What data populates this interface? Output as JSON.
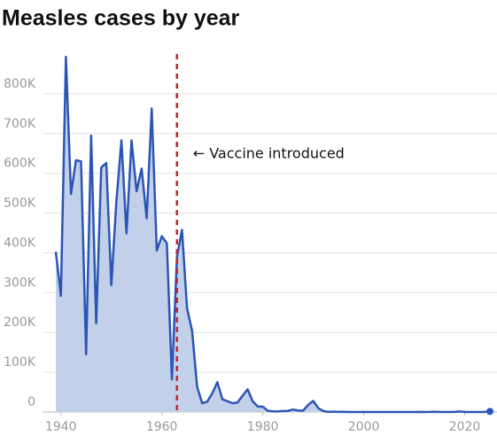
{
  "chart_data": {
    "type": "area",
    "title": "Measles cases by year",
    "x": [
      1939,
      1940,
      1941,
      1942,
      1943,
      1944,
      1945,
      1946,
      1947,
      1948,
      1949,
      1950,
      1951,
      1952,
      1953,
      1954,
      1955,
      1956,
      1957,
      1958,
      1959,
      1960,
      1961,
      1962,
      1963,
      1964,
      1965,
      1966,
      1967,
      1968,
      1969,
      1970,
      1971,
      1972,
      1973,
      1974,
      1975,
      1976,
      1977,
      1978,
      1979,
      1980,
      1981,
      1982,
      1983,
      1984,
      1985,
      1986,
      1987,
      1988,
      1989,
      1990,
      1991,
      1992,
      1993,
      1994,
      1995,
      1996,
      1997,
      1998,
      1999,
      2000,
      2001,
      2002,
      2003,
      2004,
      2005,
      2006,
      2007,
      2008,
      2009,
      2010,
      2011,
      2012,
      2013,
      2014,
      2015,
      2016,
      2017,
      2018,
      2019,
      2020,
      2021,
      2022,
      2023,
      2024,
      2025
    ],
    "series": [
      {
        "name": "Measles cases",
        "color": "#2b55b5",
        "fill": "#c3d0ea",
        "values": [
          403000,
          292000,
          893000,
          548000,
          633000,
          630000,
          145000,
          695000,
          223000,
          615000,
          626000,
          319000,
          530000,
          683000,
          449000,
          683000,
          555000,
          612000,
          487000,
          763000,
          406000,
          442000,
          424000,
          82000,
          390000,
          458000,
          261000,
          204000,
          63000,
          22000,
          26000,
          47000,
          75000,
          32000,
          27000,
          22000,
          24000,
          41000,
          57000,
          27000,
          14000,
          13500,
          3000,
          1700,
          1500,
          2600,
          2800,
          6300,
          3700,
          3400,
          18000,
          27800,
          9600,
          2200,
          312,
          963,
          309,
          508,
          138,
          100,
          100,
          86,
          116,
          44,
          56,
          37,
          66,
          55,
          43,
          140,
          71,
          63,
          220,
          55,
          187,
          667,
          188,
          86,
          120,
          375,
          1274,
          13,
          49,
          121,
          59,
          285,
          1500
        ]
      }
    ],
    "xlim": [
      1939,
      2025
    ],
    "xticks": [
      1940,
      1960,
      1980,
      2000,
      2020
    ],
    "ylim": [
      0,
      900000
    ],
    "yticks": [
      0,
      {
        "value": 100000,
        "label": "100K"
      },
      {
        "value": 200000,
        "label": "200K"
      },
      {
        "value": 300000,
        "label": "300K"
      },
      {
        "value": 400000,
        "label": "400K"
      },
      {
        "value": 500000,
        "label": "500K"
      },
      {
        "value": 600000,
        "label": "600K"
      },
      {
        "value": 700000,
        "label": "700K"
      },
      {
        "value": 800000,
        "label": "800K"
      }
    ],
    "grid": true,
    "annotation": {
      "x": 1963,
      "text": "← Vaccine introduced",
      "color": "#c0282d"
    }
  }
}
